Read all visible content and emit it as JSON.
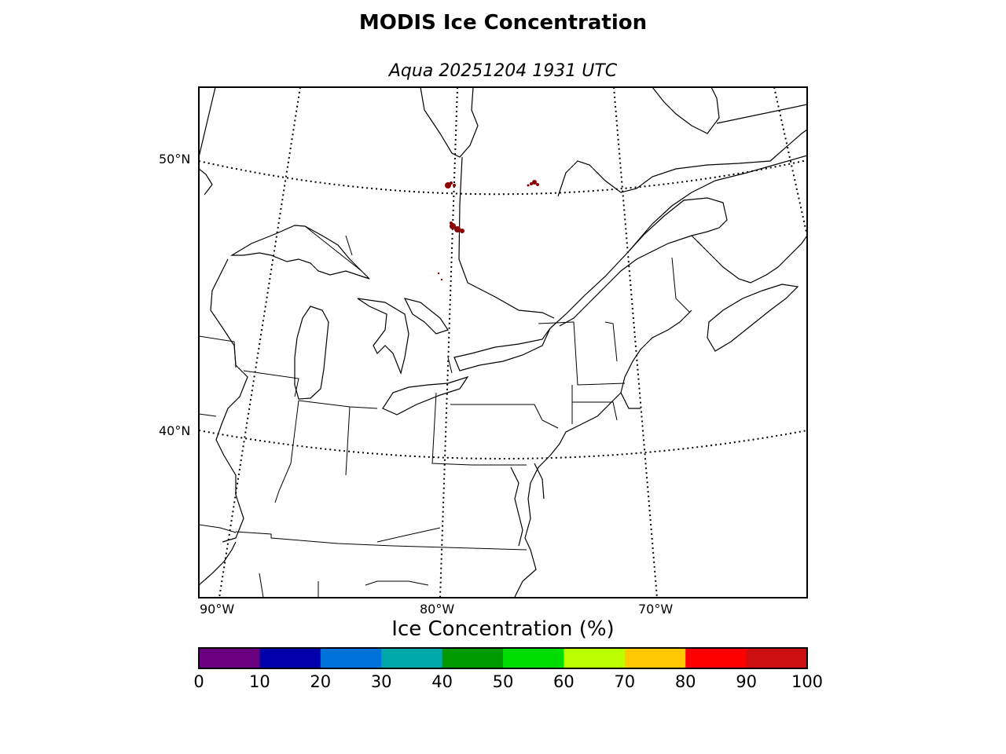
{
  "title": "MODIS Ice Concentration",
  "subtitle": "Aqua 20251204 1931 UTC",
  "map": {
    "lat_labels": [
      "50°N",
      "40°N"
    ],
    "lon_labels": [
      "90°W",
      "80°W",
      "70°W"
    ],
    "ice_patches_color": "#8b0000"
  },
  "colorbar": {
    "title": "Ice Concentration (%)",
    "ticks": [
      "0",
      "10",
      "20",
      "30",
      "40",
      "50",
      "60",
      "70",
      "80",
      "90",
      "100"
    ],
    "colors": [
      "#6a007f",
      "#0000aa",
      "#0073db",
      "#00a9a9",
      "#009900",
      "#00dd00",
      "#bbff00",
      "#ffc800",
      "#ff0000",
      "#cc0e0e"
    ]
  }
}
